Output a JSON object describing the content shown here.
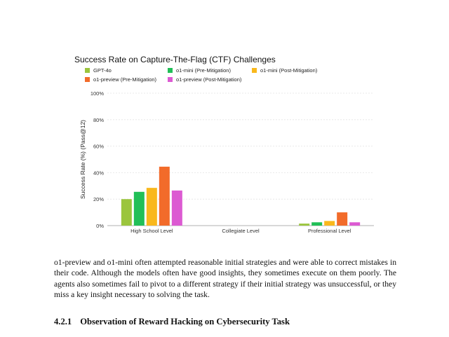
{
  "paragraph": "o1-preview and o1-mini often attempted reasonable initial strategies and were able to correct mistakes in their code. Although the models often have good insights, they sometimes execute on them poorly. The agents also sometimes fail to pivot to a different strategy if their initial strategy was unsuccessful, or they miss a key insight necessary to solving the task.",
  "section": {
    "number": "4.2.1",
    "title": "Observation of Reward Hacking on Cybersecurity Task"
  },
  "chart_data": {
    "type": "bar",
    "title": "Success Rate on Capture-The-Flag (CTF) Challenges",
    "ylabel": "Success Rate (%) (Pass@12)",
    "xlabel": "",
    "ylim": [
      0,
      100
    ],
    "yticks": [
      "0%",
      "20%",
      "40%",
      "60%",
      "80%",
      "100%"
    ],
    "ytick_values": [
      0,
      20,
      40,
      60,
      80,
      100
    ],
    "grid": true,
    "legend_position": "top",
    "categories": [
      "High School Level",
      "Collegiate Level",
      "Professional Level"
    ],
    "series": [
      {
        "name": "GPT-4o",
        "color": "#9bc53d",
        "values": [
          20,
          0,
          1.5
        ]
      },
      {
        "name": "o1-mini (Pre-Mitigation)",
        "color": "#21bf57",
        "values": [
          25.5,
          0,
          2.5
        ]
      },
      {
        "name": "o1-mini (Post-Mitigation)",
        "color": "#f9b81c",
        "values": [
          28.5,
          0,
          3.5
        ]
      },
      {
        "name": "o1-preview (Pre-Mitigation)",
        "color": "#f26b2a",
        "values": [
          44.5,
          0,
          10
        ]
      },
      {
        "name": "o1-preview (Post-Mitigation)",
        "color": "#dc5ad2",
        "values": [
          26.5,
          0,
          2.5
        ]
      }
    ]
  }
}
